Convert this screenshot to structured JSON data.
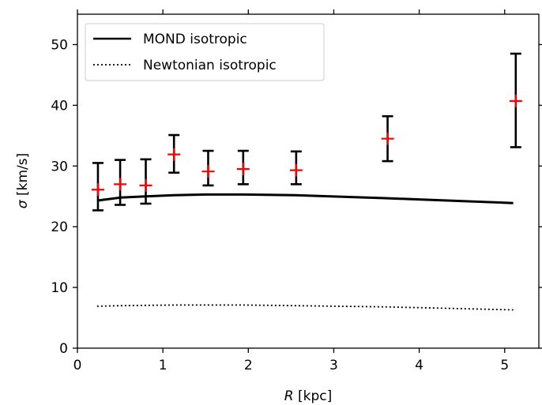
{
  "chart_data": {
    "type": "scatter",
    "title": "",
    "xlabel": {
      "var": "R",
      "unit": " [kpc]"
    },
    "ylabel": {
      "var": "σ",
      "unit": " [km/s]"
    },
    "xlim": [
      0,
      5.4
    ],
    "ylim": [
      0,
      55
    ],
    "x_ticks": [
      0,
      1,
      2,
      3,
      4,
      5
    ],
    "y_ticks": [
      0,
      10,
      20,
      30,
      40,
      50
    ],
    "grid": false,
    "legend_position": "top-left",
    "legend": [
      {
        "label": "MOND isotropic",
        "style": "solid"
      },
      {
        "label": "Newtonian isotropic",
        "style": "dotted"
      }
    ],
    "series": [
      {
        "name": "MOND isotropic",
        "kind": "line",
        "style": "solid",
        "color": "#000000",
        "points": [
          [
            0.23,
            24.3
          ],
          [
            0.5,
            24.8
          ],
          [
            0.8,
            25.0
          ],
          [
            1.13,
            25.2
          ],
          [
            1.5,
            25.3
          ],
          [
            1.95,
            25.3
          ],
          [
            2.55,
            25.2
          ],
          [
            3.6,
            24.7
          ],
          [
            5.1,
            23.9
          ]
        ]
      },
      {
        "name": "Newtonian isotropic",
        "kind": "line",
        "style": "dotted",
        "color": "#000000",
        "points": [
          [
            0.23,
            6.9
          ],
          [
            0.5,
            7.0
          ],
          [
            0.8,
            7.05
          ],
          [
            1.13,
            7.1
          ],
          [
            1.5,
            7.1
          ],
          [
            1.95,
            7.1
          ],
          [
            2.55,
            7.0
          ],
          [
            3.6,
            6.8
          ],
          [
            5.1,
            6.3
          ]
        ]
      },
      {
        "kind": "errorbar",
        "marker_color": "#ff0000",
        "errorbar_color": "#000000",
        "points": [
          {
            "x": 0.24,
            "y": 26.1,
            "lo": 22.7,
            "hi": 30.5
          },
          {
            "x": 0.5,
            "y": 27.0,
            "lo": 23.6,
            "hi": 31.0
          },
          {
            "x": 0.8,
            "y": 26.8,
            "lo": 23.8,
            "hi": 31.1
          },
          {
            "x": 1.13,
            "y": 31.9,
            "lo": 28.9,
            "hi": 35.1
          },
          {
            "x": 1.53,
            "y": 29.1,
            "lo": 26.8,
            "hi": 32.5
          },
          {
            "x": 1.94,
            "y": 29.5,
            "lo": 27.0,
            "hi": 32.5
          },
          {
            "x": 2.56,
            "y": 29.3,
            "lo": 27.0,
            "hi": 32.4
          },
          {
            "x": 3.63,
            "y": 34.5,
            "lo": 30.8,
            "hi": 38.2
          },
          {
            "x": 5.13,
            "y": 40.7,
            "lo": 33.1,
            "hi": 48.5
          }
        ]
      }
    ]
  }
}
